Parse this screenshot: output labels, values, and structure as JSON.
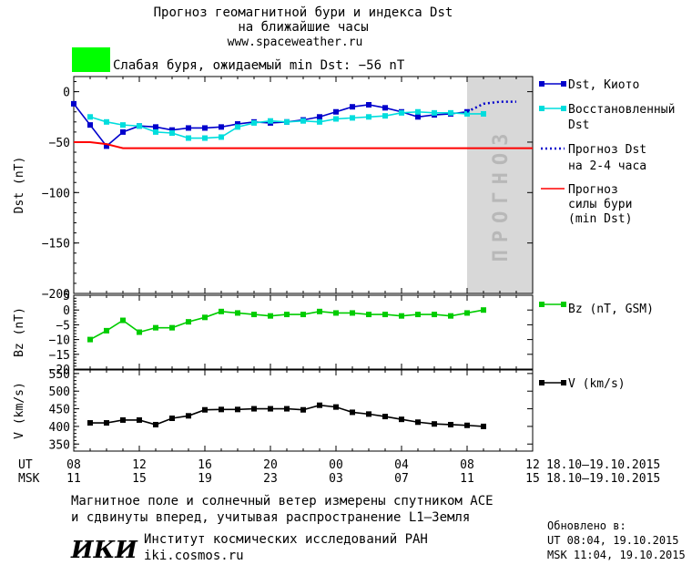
{
  "header": {
    "title_line1": "Прогноз геомагнитной бури и индекса Dst",
    "title_line2": "на ближайшие часы",
    "website": "www.spaceweather.ru",
    "status_color": "#00ff00",
    "status_text": "Слабая буря, ожидаемый min Dst: −56 nT"
  },
  "forecast_band_label": "ПРОГНОЗ",
  "legend": {
    "dst_kyoto": "Dst, Киото",
    "restored_line1": "Восстановленный",
    "restored_line2": "Dst",
    "forecast_line1": "Прогноз Dst",
    "forecast_line2": "на 2-4 часа",
    "storm_line1": "Прогноз",
    "storm_line2": "силы бури",
    "storm_line3": "(min Dst)",
    "bz": "Bz (nT, GSM)",
    "v": "V (km/s)"
  },
  "time_axis": {
    "ut_label": "UT",
    "msk_label": "MSK",
    "ut_ticks": [
      "08",
      "12",
      "16",
      "20",
      "00",
      "04",
      "08",
      "12"
    ],
    "msk_ticks": [
      "11",
      "15",
      "19",
      "23",
      "03",
      "07",
      "11",
      "15"
    ],
    "date_range_ut": "18.10–19.10.2015",
    "date_range_msk": "18.10–19.10.2015"
  },
  "footer": {
    "note_line1": "Магнитное поле и солнечный ветер измерены спутником ACE",
    "note_line2": "и сдвинуты вперед, учитывая распространение L1–Земля",
    "logo_text": "ИКИ",
    "institute": "Институт космических исследований РАН",
    "institute_site": "iki.cosmos.ru",
    "updated_label": "Обновлено в:",
    "updated_ut": "UT   08:04, 19.10.2015",
    "updated_msk": "MSK 11:04, 19.10.2015"
  },
  "chart_data": [
    {
      "type": "line",
      "ylabel": "Dst (nT)",
      "ylim": [
        -200,
        15
      ],
      "yticks": [
        0,
        -50,
        -100,
        -150,
        -200
      ],
      "x_range_hours_from_08UT": [
        0,
        28
      ],
      "forecast_region_hours": [
        24,
        28
      ],
      "series": [
        {
          "name": "Dst, Киото",
          "color": "#0000cc",
          "x": [
            0,
            1,
            2,
            3,
            4,
            5,
            6,
            7,
            8,
            9,
            10,
            11,
            12,
            13,
            14,
            15,
            16,
            17,
            18,
            19,
            20,
            21,
            22,
            23,
            24
          ],
          "y": [
            -12,
            -33,
            -54,
            -40,
            -34,
            -35,
            -38,
            -36,
            -36,
            -35,
            -32,
            -30,
            -31,
            -30,
            -28,
            -25,
            -20,
            -15,
            -13,
            -16,
            -20,
            -25,
            -23,
            -22,
            -20
          ]
        },
        {
          "name": "Восстановленный Dst",
          "color": "#00dddd",
          "x": [
            1,
            2,
            3,
            4,
            5,
            6,
            7,
            8,
            9,
            10,
            11,
            12,
            13,
            14,
            15,
            16,
            17,
            18,
            19,
            20,
            21,
            22,
            23,
            24,
            25
          ],
          "y": [
            -25,
            -30,
            -33,
            -34,
            -40,
            -41,
            -46,
            -46,
            -45,
            -35,
            -31,
            -29,
            -30,
            -29,
            -30,
            -27,
            -26,
            -25,
            -24,
            -21,
            -20,
            -21,
            -21,
            -22,
            -22
          ]
        },
        {
          "name": "Прогноз Dst на 2-4 часа",
          "color": "#0000cc",
          "style": "dotted",
          "x": [
            24,
            25,
            26,
            27
          ],
          "y": [
            -20,
            -12,
            -10,
            -10
          ]
        },
        {
          "name": "Прогноз силы бури (min Dst)",
          "color": "#ff0000",
          "x": [
            0,
            1,
            2,
            3,
            28
          ],
          "y": [
            -50,
            -50,
            -52,
            -56,
            -56
          ]
        }
      ]
    },
    {
      "type": "line",
      "ylabel": "Bz (nT)",
      "ylim": [
        -20,
        5
      ],
      "yticks": [
        5,
        0,
        -5,
        -10,
        -15,
        -20
      ],
      "series": [
        {
          "name": "Bz (nT, GSM)",
          "color": "#00cc00",
          "x": [
            1,
            2,
            3,
            4,
            5,
            6,
            7,
            8,
            9,
            10,
            11,
            12,
            13,
            14,
            15,
            16,
            17,
            18,
            19,
            20,
            21,
            22,
            23,
            24,
            25
          ],
          "y": [
            -10,
            -7,
            -3.5,
            -7.5,
            -6,
            -6,
            -4,
            -2.5,
            -0.5,
            -1,
            -1.5,
            -2,
            -1.5,
            -1.5,
            -0.5,
            -1,
            -1,
            -1.5,
            -1.5,
            -2,
            -1.5,
            -1.5,
            -2,
            -1,
            0
          ]
        }
      ]
    },
    {
      "type": "line",
      "ylabel": "V (km/s)",
      "ylim": [
        330,
        560
      ],
      "yticks": [
        550,
        500,
        450,
        400,
        350
      ],
      "series": [
        {
          "name": "V (km/s)",
          "color": "#000000",
          "x": [
            1,
            2,
            3,
            4,
            5,
            6,
            7,
            8,
            9,
            10,
            11,
            12,
            13,
            14,
            15,
            16,
            17,
            18,
            19,
            20,
            21,
            22,
            23,
            24,
            25
          ],
          "y": [
            410,
            410,
            418,
            418,
            405,
            423,
            430,
            447,
            448,
            448,
            450,
            450,
            450,
            447,
            460,
            455,
            440,
            435,
            428,
            420,
            412,
            407,
            405,
            403,
            400
          ]
        }
      ]
    }
  ]
}
